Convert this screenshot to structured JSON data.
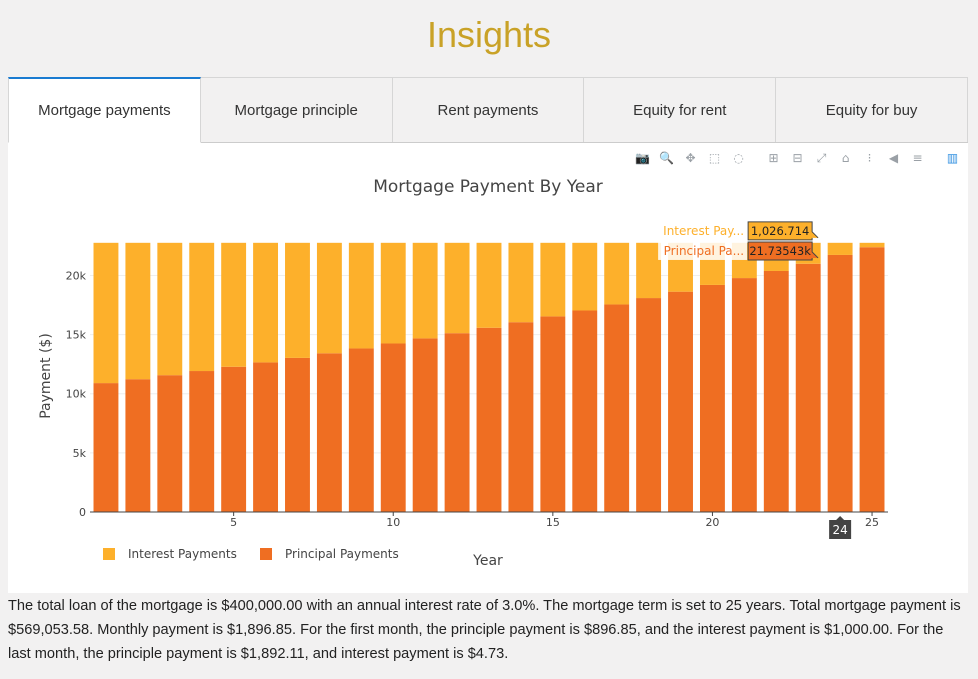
{
  "page": {
    "title": "Insights"
  },
  "tabs": [
    {
      "label": "Mortgage payments",
      "active": true
    },
    {
      "label": "Mortgage principle",
      "active": false
    },
    {
      "label": "Rent payments",
      "active": false
    },
    {
      "label": "Equity for rent",
      "active": false
    },
    {
      "label": "Equity for buy",
      "active": false
    }
  ],
  "modebar": [
    {
      "name": "camera-icon",
      "glyph": "📷"
    },
    {
      "name": "zoom-icon",
      "glyph": "🔍"
    },
    {
      "name": "pan-icon",
      "glyph": "✥"
    },
    {
      "name": "box-select-icon",
      "glyph": "⬚"
    },
    {
      "name": "lasso-select-icon",
      "glyph": "◌"
    },
    {
      "name": "zoom-in-icon",
      "glyph": "⊞"
    },
    {
      "name": "zoom-out-icon",
      "glyph": "⊟"
    },
    {
      "name": "autoscale-icon",
      "glyph": "⤢"
    },
    {
      "name": "reset-axes-icon",
      "glyph": "⌂"
    },
    {
      "name": "spike-lines-icon",
      "glyph": "⁝"
    },
    {
      "name": "hover-closest-icon",
      "glyph": "◀"
    },
    {
      "name": "hover-compare-icon",
      "glyph": "≡"
    },
    {
      "name": "plotly-logo-icon",
      "glyph": "▥"
    }
  ],
  "colors": {
    "interest": "#fdb02b",
    "principal": "#ef6e22",
    "accent": "#c9a227",
    "tab_active_border": "#1a7bd1"
  },
  "chart_data": {
    "type": "bar",
    "stacked": true,
    "title": "Mortgage Payment By Year",
    "xlabel": "Year",
    "ylabel": "Payment ($)",
    "xlim": [
      0.5,
      25.5
    ],
    "ylim": [
      0,
      23000
    ],
    "xticks": [
      5,
      10,
      15,
      20,
      25
    ],
    "xtick_labels": [
      "5",
      "10",
      "15",
      "20",
      "25"
    ],
    "yticks": [
      0,
      5000,
      10000,
      15000,
      20000
    ],
    "ytick_labels": [
      "0",
      "5k",
      "10k",
      "15k",
      "20k"
    ],
    "grid": true,
    "legend_position": "bottom-left",
    "x": [
      1,
      2,
      3,
      4,
      5,
      6,
      7,
      8,
      9,
      10,
      11,
      12,
      13,
      14,
      15,
      16,
      17,
      18,
      19,
      20,
      21,
      22,
      23,
      24,
      25
    ],
    "series": [
      {
        "name": "Principal Payments",
        "color": "#ef6e22",
        "values": [
          10900,
          11230,
          11570,
          11920,
          12280,
          12650,
          13030,
          13420,
          13830,
          14250,
          14680,
          15120,
          15580,
          16050,
          16540,
          17040,
          17550,
          18090,
          18630,
          19200,
          19780,
          20380,
          20990,
          21735.43,
          22390
        ]
      },
      {
        "name": "Interest Payments",
        "color": "#fdb02b",
        "values": [
          11862,
          11532,
          11192,
          10842,
          10482,
          10112,
          9732,
          9342,
          8932,
          8512,
          8082,
          7642,
          7182,
          6712,
          6222,
          5722,
          5212,
          4672,
          4132,
          3562,
          2982,
          2382,
          1772,
          1026.714,
          372
        ]
      }
    ],
    "hover": {
      "x": 24,
      "x_label": "24",
      "items": [
        {
          "name": "Interest Pay...",
          "value": "1,026.714"
        },
        {
          "name": "Principal Pa...",
          "value": "21.73543k"
        }
      ]
    }
  },
  "summary": {
    "text": "The total loan of the mortgage is $400,000.00 with an annual interest rate of 3.0%. The mortgage term is set to 25 years. Total mortgage payment is $569,053.58. Monthly payment is $1,896.85. For the first month, the principle payment is $896.85, and the interest payment is $1,000.00. For the last month, the principle payment is $1,892.11, and interest payment is $4.73."
  }
}
